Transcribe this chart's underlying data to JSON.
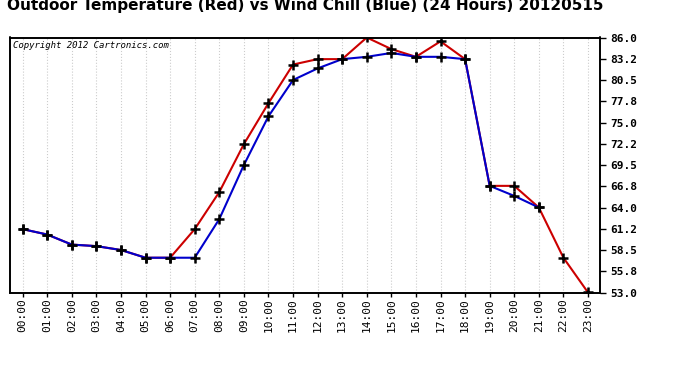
{
  "title": "Outdoor Temperature (Red) vs Wind Chill (Blue) (24 Hours) 20120515",
  "copyright": "Copyright 2012 Cartronics.com",
  "hours": [
    0,
    1,
    2,
    3,
    4,
    5,
    6,
    7,
    8,
    9,
    10,
    11,
    12,
    13,
    14,
    15,
    16,
    17,
    18,
    19,
    20,
    21,
    22,
    23
  ],
  "temp_red": [
    61.2,
    60.5,
    59.2,
    59.0,
    58.5,
    57.5,
    57.5,
    61.2,
    66.0,
    72.2,
    77.5,
    82.5,
    83.2,
    83.2,
    86.0,
    84.5,
    83.5,
    85.5,
    83.2,
    66.8,
    66.8,
    64.0,
    57.5,
    53.0
  ],
  "wind_blue": [
    61.2,
    60.5,
    59.2,
    59.0,
    58.5,
    57.5,
    57.5,
    57.5,
    62.5,
    69.5,
    75.8,
    80.5,
    82.0,
    83.2,
    83.5,
    84.0,
    83.5,
    83.5,
    83.2,
    66.8,
    65.5,
    64.0,
    null,
    null
  ],
  "ylim": [
    53.0,
    86.0
  ],
  "yticks": [
    53.0,
    55.8,
    58.5,
    61.2,
    64.0,
    66.8,
    69.5,
    72.2,
    75.0,
    77.8,
    80.5,
    83.2,
    86.0
  ],
  "bg_color": "#ffffff",
  "plot_bg": "#ffffff",
  "red_color": "#cc0000",
  "blue_color": "#0000cc",
  "marker_color": "#000000",
  "grid_color": "#cccccc",
  "title_fontsize": 11,
  "copyright_fontsize": 6.5,
  "tick_fontsize": 8
}
